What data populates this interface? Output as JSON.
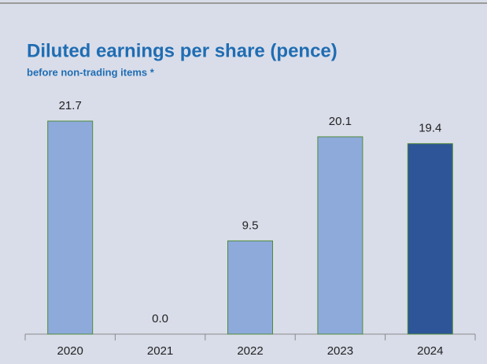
{
  "chart_data": {
    "type": "bar",
    "title": "Diluted earnings per share (pence)",
    "subtitle": "before non-trading items *",
    "categories": [
      "2020",
      "2021",
      "2022",
      "2023",
      "2024"
    ],
    "values": [
      21.7,
      0.0,
      9.5,
      20.1,
      19.4
    ],
    "value_labels": [
      "21.7",
      "0.0",
      "9.5",
      "20.1",
      "19.4"
    ],
    "colors": [
      "#8eaadb",
      "#8eaadb",
      "#8eaadb",
      "#8eaadb",
      "#2e5597"
    ]
  }
}
